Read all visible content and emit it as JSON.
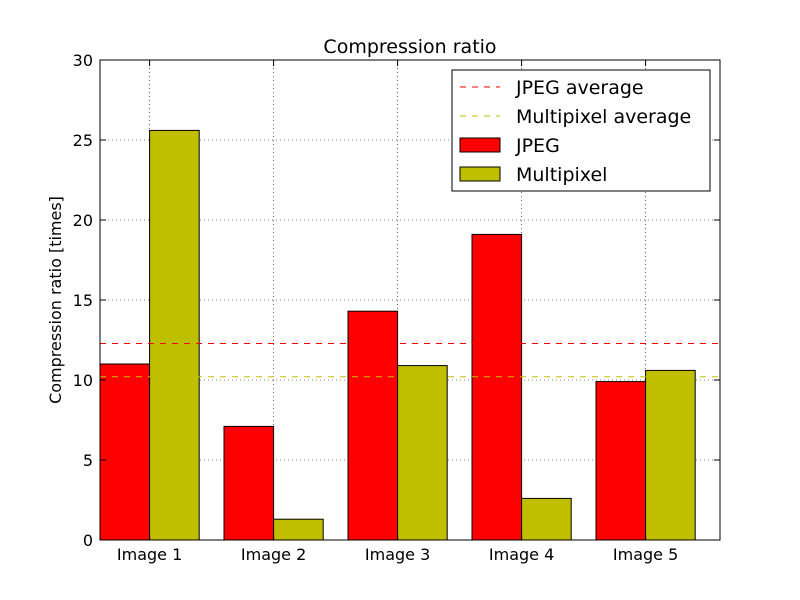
{
  "chart_data": {
    "type": "bar",
    "title": "Compression ratio",
    "xlabel": "",
    "ylabel": "Compression ratio [times]",
    "ylim": [
      0,
      30
    ],
    "yticks": [
      "0",
      "5",
      "10",
      "15",
      "20",
      "25",
      "30"
    ],
    "categories": [
      "Image 1",
      "Image 2",
      "Image 3",
      "Image 4",
      "Image 5"
    ],
    "series": [
      {
        "name": "JPEG",
        "color": "#ff0000",
        "values": [
          11.0,
          7.1,
          14.3,
          19.1,
          9.9
        ]
      },
      {
        "name": "Multipixel",
        "color": "#bfbf00",
        "values": [
          25.6,
          1.3,
          10.9,
          2.6,
          10.6
        ]
      }
    ],
    "reference_lines": [
      {
        "name": "JPEG average",
        "color": "#ff0000",
        "value": 12.28
      },
      {
        "name": "Multipixel average",
        "color": "#bfbf00",
        "value": 10.2
      }
    ],
    "grid": true,
    "legend_position": "top-right"
  }
}
